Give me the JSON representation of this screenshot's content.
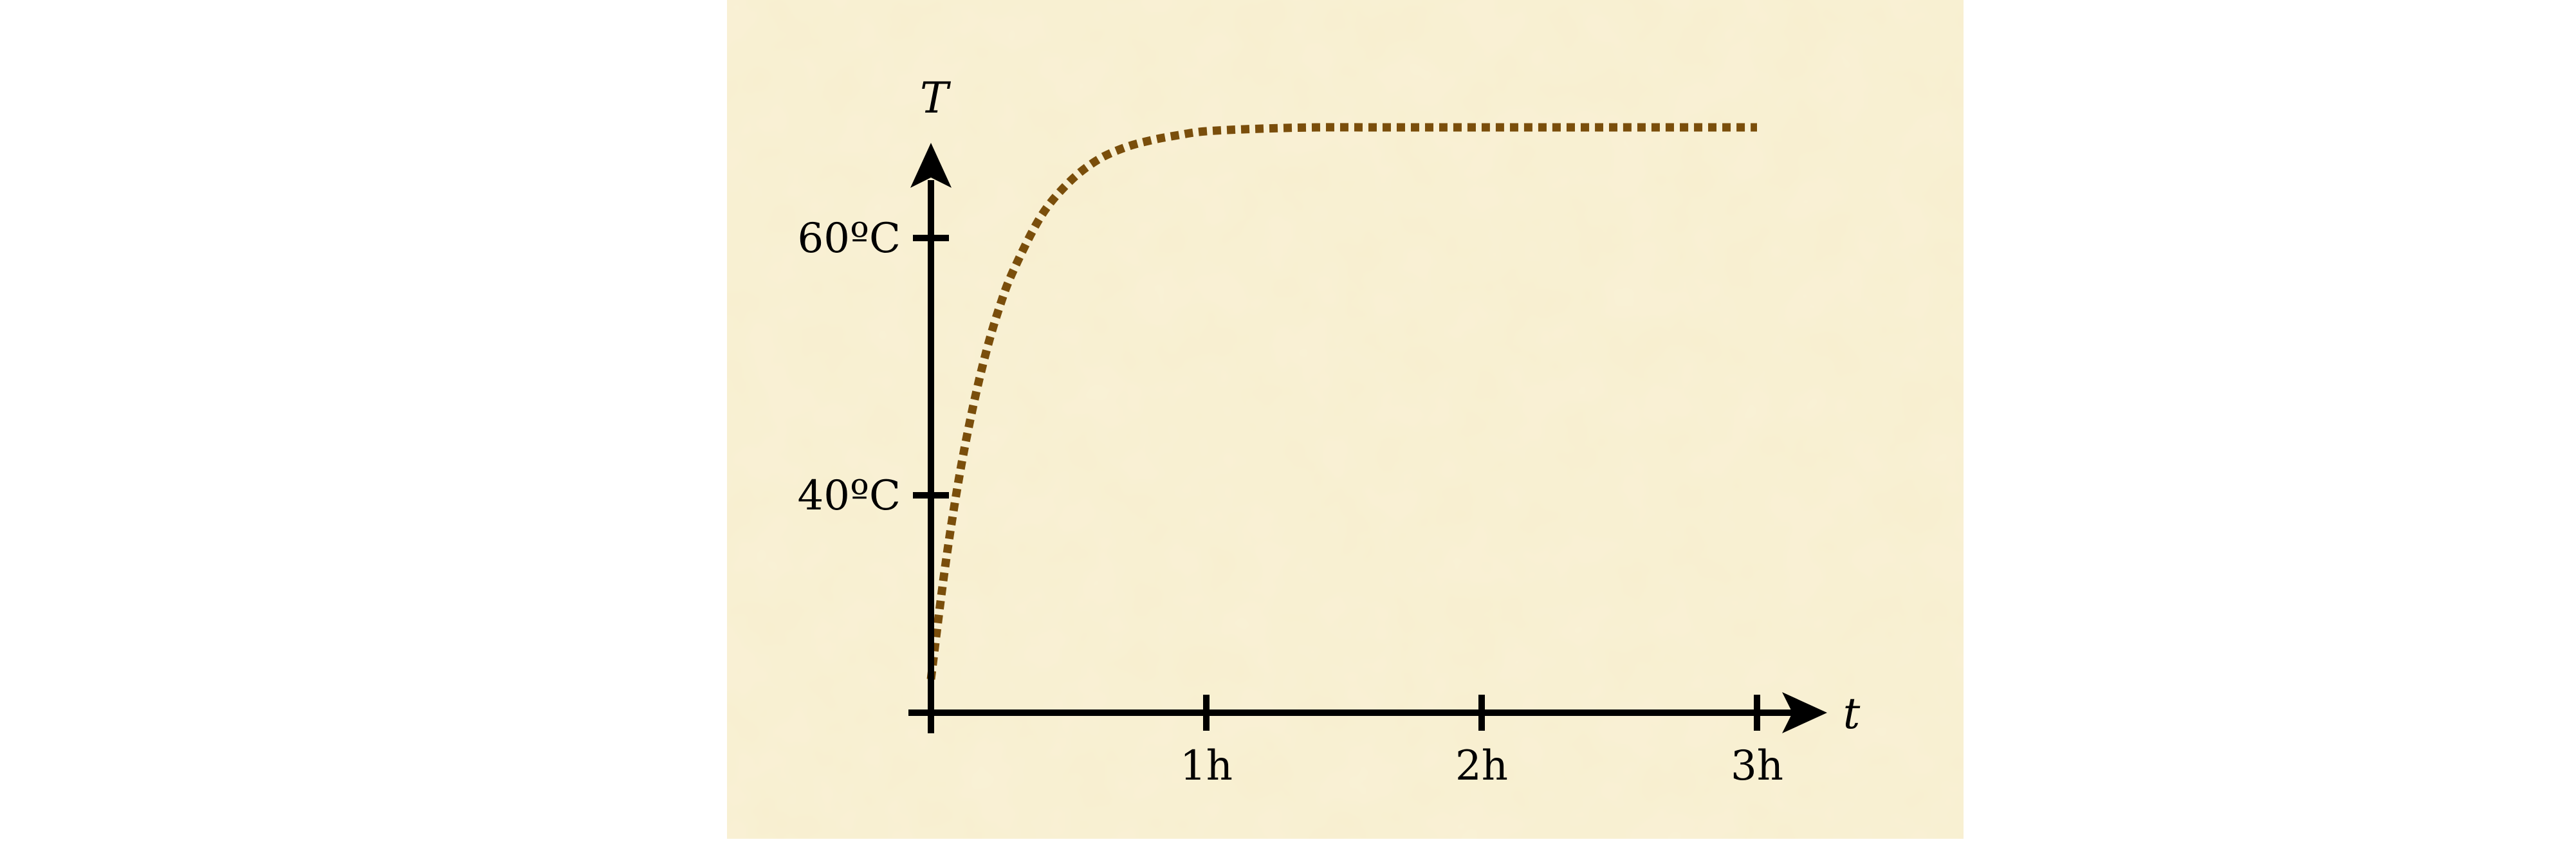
{
  "chart_data": {
    "type": "line",
    "title": "",
    "xlabel": "t",
    "ylabel": "T",
    "x_ticks": [
      {
        "value": 1,
        "label": "1h"
      },
      {
        "value": 2,
        "label": "2h"
      },
      {
        "value": 3,
        "label": "3h"
      }
    ],
    "y_ticks": [
      {
        "value": 40,
        "label": "40ºC"
      },
      {
        "value": 60,
        "label": "60ºC"
      }
    ],
    "xlim": [
      0,
      3.25
    ],
    "ylim": [
      23.1,
      69.2
    ],
    "grid": false,
    "legend": "none",
    "series": [
      {
        "style": "dotted",
        "color": "#7a4e0b",
        "x": [
          0,
          0.05,
          0.1,
          0.15,
          0.2,
          0.25,
          0.3,
          0.4,
          0.5,
          0.6,
          0.7,
          0.8,
          0.9,
          1.0,
          1.2,
          1.4,
          1.6,
          1.8,
          2.0,
          2.5,
          3.0
        ],
        "y": [
          25.7,
          34.2,
          41.1,
          46.6,
          51.1,
          54.7,
          57.5,
          61.7,
          64.3,
          66.0,
          67.0,
          67.6,
          68.0,
          68.3,
          68.5,
          68.6,
          68.6,
          68.6,
          68.6,
          68.6,
          68.6
        ]
      }
    ],
    "colors": {
      "background": "#f8efcf",
      "axis": "#000000",
      "curve": "#7a4e0b"
    }
  }
}
